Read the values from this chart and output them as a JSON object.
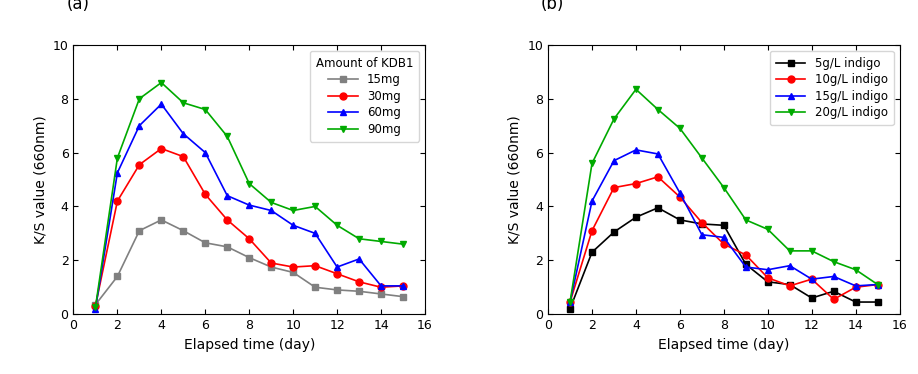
{
  "panel_a": {
    "title": "(a)",
    "xlabel": "Elapsed time (day)",
    "ylabel": "K/S value (660nm)",
    "xlim": [
      0,
      16
    ],
    "ylim": [
      0,
      10
    ],
    "xticks": [
      0,
      2,
      4,
      6,
      8,
      10,
      12,
      14,
      16
    ],
    "yticks": [
      0,
      2,
      4,
      6,
      8,
      10
    ],
    "legend_title": "Amount of KDB1",
    "series": [
      {
        "label": "15mg",
        "color": "#808080",
        "marker": "s",
        "x": [
          1,
          2,
          3,
          4,
          5,
          6,
          7,
          8,
          9,
          10,
          11,
          12,
          13,
          14,
          15
        ],
        "y": [
          0.35,
          1.4,
          3.1,
          3.5,
          3.1,
          2.65,
          2.5,
          2.1,
          1.75,
          1.55,
          1.0,
          0.9,
          0.85,
          0.75,
          0.65
        ]
      },
      {
        "label": "30mg",
        "color": "#ff0000",
        "marker": "o",
        "x": [
          1,
          2,
          3,
          4,
          5,
          6,
          7,
          8,
          9,
          10,
          11,
          12,
          13,
          14,
          15
        ],
        "y": [
          0.3,
          4.2,
          5.55,
          6.15,
          5.85,
          4.45,
          3.5,
          2.8,
          1.9,
          1.75,
          1.8,
          1.5,
          1.2,
          1.0,
          1.05
        ]
      },
      {
        "label": "60mg",
        "color": "#0000ff",
        "marker": "^",
        "x": [
          1,
          2,
          3,
          4,
          5,
          6,
          7,
          8,
          9,
          10,
          11,
          12,
          13,
          14,
          15
        ],
        "y": [
          0.2,
          5.25,
          7.0,
          7.8,
          6.7,
          6.0,
          4.4,
          4.05,
          3.85,
          3.3,
          3.0,
          1.75,
          2.05,
          1.05,
          1.05
        ]
      },
      {
        "label": "90mg",
        "color": "#00aa00",
        "marker": "v",
        "x": [
          1,
          2,
          3,
          4,
          5,
          6,
          7,
          8,
          9,
          10,
          11,
          12,
          13,
          14,
          15
        ],
        "y": [
          0.25,
          5.8,
          8.0,
          8.6,
          7.85,
          7.6,
          6.6,
          4.85,
          4.15,
          3.85,
          4.0,
          3.3,
          2.8,
          2.7,
          2.6
        ]
      }
    ]
  },
  "panel_b": {
    "title": "(b)",
    "xlabel": "Elapsed time (day)",
    "ylabel": "K/S value (660nm)",
    "xlim": [
      0,
      16
    ],
    "ylim": [
      0,
      10
    ],
    "xticks": [
      0,
      2,
      4,
      6,
      8,
      10,
      12,
      14,
      16
    ],
    "yticks": [
      0,
      2,
      4,
      6,
      8,
      10
    ],
    "series": [
      {
        "label": "5g/L indigo",
        "color": "#000000",
        "marker": "s",
        "x": [
          1,
          2,
          3,
          4,
          5,
          6,
          7,
          8,
          9,
          10,
          11,
          12,
          13,
          14,
          15
        ],
        "y": [
          0.2,
          2.3,
          3.05,
          3.6,
          3.95,
          3.5,
          3.35,
          3.3,
          1.85,
          1.2,
          1.1,
          0.6,
          0.85,
          0.45,
          0.45
        ]
      },
      {
        "label": "10g/L indigo",
        "color": "#ff0000",
        "marker": "o",
        "x": [
          1,
          2,
          3,
          4,
          5,
          6,
          7,
          8,
          9,
          10,
          11,
          12,
          13,
          14,
          15
        ],
        "y": [
          0.45,
          3.1,
          4.7,
          4.85,
          5.1,
          4.35,
          3.4,
          2.6,
          2.2,
          1.35,
          1.05,
          1.3,
          0.55,
          1.0,
          1.1
        ]
      },
      {
        "label": "15g/L indigo",
        "color": "#0000ff",
        "marker": "^",
        "x": [
          1,
          2,
          3,
          4,
          5,
          6,
          7,
          8,
          9,
          10,
          11,
          12,
          13,
          14,
          15
        ],
        "y": [
          0.45,
          4.2,
          5.7,
          6.1,
          5.95,
          4.5,
          2.95,
          2.85,
          1.75,
          1.65,
          1.8,
          1.3,
          1.4,
          1.05,
          1.1
        ]
      },
      {
        "label": "20g/L indigo",
        "color": "#00aa00",
        "marker": "v",
        "x": [
          1,
          2,
          3,
          4,
          5,
          6,
          7,
          8,
          9,
          10,
          11,
          12,
          13,
          14,
          15
        ],
        "y": [
          0.45,
          5.6,
          7.25,
          8.35,
          7.6,
          6.9,
          5.8,
          4.7,
          3.5,
          3.15,
          2.35,
          2.35,
          1.95,
          1.65,
          1.1
        ]
      }
    ]
  },
  "fig_width": 9.18,
  "fig_height": 3.74,
  "dpi": 100
}
